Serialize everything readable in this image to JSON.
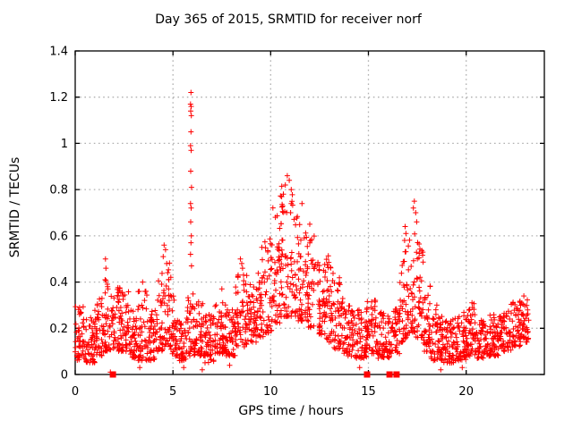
{
  "chart_data": {
    "type": "scatter",
    "title": "Day 365 of 2015, SRMTID for receiver norf",
    "xlabel": "GPS time / hours",
    "ylabel": "SRMTID / TECUs",
    "xlim": [
      0,
      24
    ],
    "ylim": [
      0,
      1.4
    ],
    "xticks": [
      0,
      5,
      10,
      15,
      20
    ],
    "yticks": [
      0,
      0.2,
      0.4,
      0.6,
      0.8,
      1,
      1.2,
      1.4
    ],
    "grid": true,
    "legend": "none",
    "marker": "plus",
    "marker_color": "#ff0000",
    "grid_color": "#b0b0b0",
    "border_color": "#000000",
    "background": "#ffffff",
    "points_per_hour": 95,
    "seed": 1231,
    "series_bands": [
      [
        0.0,
        0.5,
        0.06,
        0.3
      ],
      [
        0.5,
        1.0,
        0.05,
        0.26
      ],
      [
        1.0,
        1.5,
        0.08,
        0.34
      ],
      [
        1.5,
        1.8,
        0.1,
        0.42
      ],
      [
        1.8,
        2.3,
        0.1,
        0.38
      ],
      [
        2.3,
        2.8,
        0.1,
        0.36
      ],
      [
        2.8,
        3.2,
        0.07,
        0.28
      ],
      [
        3.2,
        3.7,
        0.06,
        0.36
      ],
      [
        3.7,
        4.1,
        0.06,
        0.3
      ],
      [
        4.1,
        4.5,
        0.1,
        0.44
      ],
      [
        4.5,
        4.9,
        0.12,
        0.52
      ],
      [
        4.9,
        5.3,
        0.08,
        0.35
      ],
      [
        5.3,
        5.7,
        0.06,
        0.24
      ],
      [
        5.7,
        6.1,
        0.08,
        0.38
      ],
      [
        6.1,
        6.6,
        0.08,
        0.32
      ],
      [
        6.6,
        7.1,
        0.05,
        0.26
      ],
      [
        7.1,
        7.7,
        0.09,
        0.32
      ],
      [
        7.7,
        8.2,
        0.08,
        0.28
      ],
      [
        8.2,
        8.8,
        0.12,
        0.44
      ],
      [
        8.8,
        9.3,
        0.14,
        0.42
      ],
      [
        9.3,
        9.7,
        0.16,
        0.5
      ],
      [
        9.7,
        10.1,
        0.18,
        0.6
      ],
      [
        10.1,
        10.5,
        0.22,
        0.74
      ],
      [
        10.5,
        11.0,
        0.25,
        0.82
      ],
      [
        11.0,
        11.4,
        0.25,
        0.78
      ],
      [
        11.4,
        11.8,
        0.23,
        0.68
      ],
      [
        11.8,
        12.3,
        0.2,
        0.6
      ],
      [
        12.3,
        12.8,
        0.17,
        0.5
      ],
      [
        12.8,
        13.2,
        0.14,
        0.52
      ],
      [
        13.2,
        13.7,
        0.11,
        0.42
      ],
      [
        13.7,
        14.3,
        0.08,
        0.3
      ],
      [
        14.3,
        14.9,
        0.07,
        0.28
      ],
      [
        14.9,
        15.5,
        0.09,
        0.33
      ],
      [
        15.5,
        16.1,
        0.07,
        0.27
      ],
      [
        16.1,
        16.6,
        0.09,
        0.3
      ],
      [
        16.6,
        17.0,
        0.14,
        0.55
      ],
      [
        17.0,
        17.4,
        0.18,
        0.62
      ],
      [
        17.4,
        17.8,
        0.16,
        0.58
      ],
      [
        17.8,
        18.2,
        0.1,
        0.4
      ],
      [
        18.2,
        18.8,
        0.06,
        0.27
      ],
      [
        18.8,
        19.4,
        0.05,
        0.24
      ],
      [
        19.4,
        20.0,
        0.06,
        0.27
      ],
      [
        20.0,
        20.5,
        0.08,
        0.31
      ],
      [
        20.5,
        21.1,
        0.07,
        0.24
      ],
      [
        21.1,
        21.7,
        0.08,
        0.26
      ],
      [
        21.7,
        22.3,
        0.1,
        0.28
      ],
      [
        22.3,
        22.8,
        0.12,
        0.32
      ],
      [
        22.8,
        23.2,
        0.14,
        0.33
      ]
    ],
    "outlier_points": [
      [
        5.92,
        1.22
      ],
      [
        5.9,
        1.17
      ],
      [
        5.93,
        1.16
      ],
      [
        5.91,
        1.14
      ],
      [
        5.94,
        1.12
      ],
      [
        5.92,
        1.05
      ],
      [
        5.9,
        0.99
      ],
      [
        5.93,
        0.97
      ],
      [
        5.91,
        0.88
      ],
      [
        5.95,
        0.81
      ],
      [
        5.9,
        0.74
      ],
      [
        5.93,
        0.72
      ],
      [
        5.91,
        0.66
      ],
      [
        5.94,
        0.6
      ],
      [
        5.92,
        0.57
      ],
      [
        5.9,
        0.52
      ],
      [
        5.95,
        0.47
      ],
      [
        1.55,
        0.5
      ],
      [
        1.57,
        0.46
      ],
      [
        1.53,
        0.41
      ],
      [
        3.45,
        0.4
      ],
      [
        4.55,
        0.56
      ],
      [
        4.62,
        0.54
      ],
      [
        4.5,
        0.51
      ],
      [
        4.68,
        0.48
      ],
      [
        7.5,
        0.37
      ],
      [
        8.45,
        0.5
      ],
      [
        8.52,
        0.48
      ],
      [
        8.56,
        0.46
      ],
      [
        9.55,
        0.55
      ],
      [
        10.85,
        0.86
      ],
      [
        10.95,
        0.84
      ],
      [
        10.75,
        0.82
      ],
      [
        11.05,
        0.8
      ],
      [
        10.65,
        0.78
      ],
      [
        11.6,
        0.74
      ],
      [
        12.0,
        0.65
      ],
      [
        16.88,
        0.64
      ],
      [
        16.92,
        0.61
      ],
      [
        16.85,
        0.58
      ],
      [
        17.35,
        0.75
      ],
      [
        17.3,
        0.72
      ],
      [
        17.42,
        0.7
      ],
      [
        17.47,
        0.66
      ],
      [
        18.5,
        0.3
      ],
      [
        18.45,
        0.28
      ],
      [
        20.3,
        0.31
      ],
      [
        20.32,
        0.29
      ],
      [
        22.95,
        0.34
      ],
      [
        1.8,
        0.01
      ],
      [
        3.3,
        0.03
      ],
      [
        5.55,
        0.03
      ],
      [
        6.5,
        0.02
      ],
      [
        7.9,
        0.04
      ],
      [
        14.55,
        0.03
      ],
      [
        18.7,
        0.02
      ],
      [
        19.8,
        0.03
      ]
    ],
    "zero_marker_hours": [
      1.93,
      14.93,
      16.08,
      16.44
    ]
  }
}
